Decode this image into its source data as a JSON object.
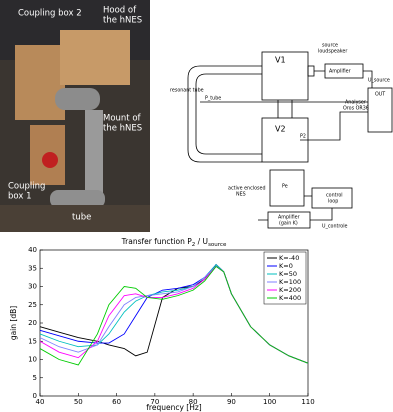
{
  "photo": {
    "labels": [
      [
        "Coupling box 2"
      ],
      [
        "Hood of",
        "the hNES"
      ],
      [
        "Mount of",
        "the hNES"
      ],
      [
        "Coupling",
        "box 1"
      ],
      [
        "tube"
      ]
    ]
  },
  "diagram": {
    "labels": [
      [
        "V1"
      ],
      [
        "V2"
      ],
      [
        "source",
        "loudspeaker"
      ],
      [
        "Amplifier"
      ],
      [
        "U_source"
      ],
      [
        "resonant tube"
      ],
      [
        "P_tube"
      ],
      [
        "Analyser",
        "Oros OR36"
      ],
      [
        "OUT"
      ],
      [
        "P2"
      ],
      [
        "active enclosed",
        "NES"
      ],
      [
        "Pe"
      ],
      [
        "control",
        "loop"
      ],
      [
        "Amplifier",
        "(gain K)"
      ],
      [
        "U_controle"
      ]
    ]
  },
  "chart_data": {
    "type": "line",
    "title": [
      "Transfer function P",
      "2",
      " / U",
      "source"
    ],
    "x_label": "frequency [Hz]",
    "y_label": "gain [dB]",
    "x": [
      40,
      45,
      50,
      55,
      58,
      62,
      65,
      68,
      72,
      76,
      80,
      83,
      86,
      88,
      90,
      95,
      100,
      105,
      110
    ],
    "series": [
      {
        "name": "K=-40",
        "color": "#000000",
        "values": [
          19,
          17.5,
          16,
          15,
          14,
          13,
          11,
          12,
          27,
          29.5,
          30,
          32,
          36,
          34,
          28,
          19,
          14,
          11,
          9
        ]
      },
      {
        "name": "K=0",
        "color": "#0000ff",
        "values": [
          18,
          16.5,
          15,
          14.5,
          14.5,
          17,
          22,
          27,
          29,
          29.5,
          30.5,
          32.5,
          36,
          34,
          28,
          19,
          14,
          11,
          9
        ]
      },
      {
        "name": "K=50",
        "color": "#00bfbf",
        "values": [
          17,
          15,
          13.5,
          14,
          17,
          23,
          26,
          27.5,
          28.5,
          29,
          30,
          32.5,
          36,
          34,
          28,
          19,
          14,
          11,
          9
        ]
      },
      {
        "name": "K=100",
        "color": "#8080ff",
        "values": [
          16,
          13.5,
          12,
          14,
          19,
          25,
          27,
          27.5,
          28,
          28.5,
          30,
          32.5,
          35.5,
          34,
          28,
          19,
          14,
          11,
          9
        ]
      },
      {
        "name": "K=200",
        "color": "#ff00ff",
        "values": [
          15,
          12,
          10.5,
          15,
          22,
          27.5,
          28,
          27,
          27,
          28,
          29.5,
          32,
          35.5,
          34,
          28,
          19,
          14,
          11,
          9
        ]
      },
      {
        "name": "K=400",
        "color": "#00cc00",
        "values": [
          13,
          10,
          8.5,
          17,
          25,
          30,
          29.5,
          27,
          26.5,
          27.5,
          29,
          31.5,
          35.5,
          34,
          28,
          19,
          14,
          11,
          9
        ]
      }
    ],
    "xlim": [
      40,
      110
    ],
    "xticks": [
      40,
      50,
      60,
      70,
      80,
      90,
      100,
      110
    ],
    "ylim": [
      0,
      40
    ],
    "yticks": [
      0,
      5,
      10,
      15,
      20,
      25,
      30,
      35,
      40
    ],
    "grid": false,
    "legend": "top-right"
  }
}
